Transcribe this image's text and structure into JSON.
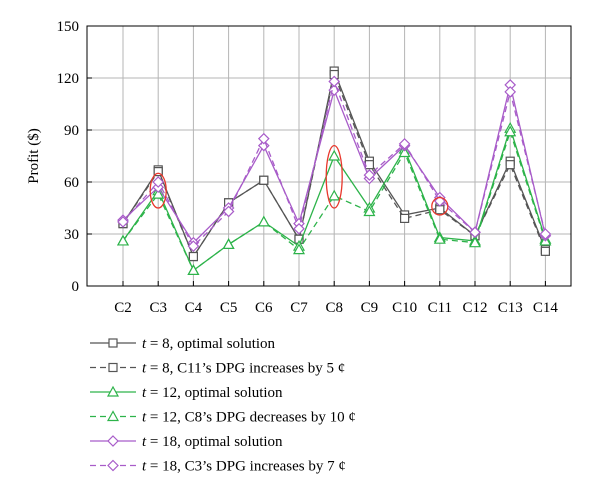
{
  "chart_data": {
    "type": "line",
    "title": "",
    "xlabel": "",
    "ylabel": "Profit ($)",
    "ylim": [
      0,
      150
    ],
    "yticks": [
      0,
      30,
      60,
      90,
      120,
      150
    ],
    "grid": true,
    "legend_placement": "bottom",
    "categories": [
      "C2",
      "C3",
      "C4",
      "C5",
      "C6",
      "C7",
      "C8",
      "C9",
      "C10",
      "C11",
      "C12",
      "C13",
      "C14"
    ],
    "series": [
      {
        "name": "t = 8, optimal solution",
        "t": "t",
        "rest": " = 8, optimal solution",
        "marker": "square",
        "dash": false,
        "color": "#555555",
        "values": [
          36,
          67,
          17,
          48,
          61,
          27,
          124,
          72,
          41,
          45,
          29,
          72,
          21
        ]
      },
      {
        "name": "t = 8, C11's DPG increases by 5 ¢",
        "t": "t",
        "rest": " = 8, C11’s DPG increases by 5 ¢",
        "marker": "square",
        "dash": true,
        "color": "#555555",
        "values": [
          36,
          66,
          17,
          48,
          61,
          27,
          122,
          70,
          39,
          44,
          29,
          70,
          20
        ]
      },
      {
        "name": "t = 12, optimal solution",
        "t": "t",
        "rest": " = 12, optimal solution",
        "marker": "triangle",
        "dash": false,
        "color": "#2db34a",
        "values": [
          26,
          55,
          9,
          24,
          37,
          23,
          75,
          45,
          79,
          28,
          26,
          91,
          27
        ]
      },
      {
        "name": "t = 12, C8's DPG decreases by 10 ¢",
        "t": "t",
        "rest": " = 12, C8’s DPG decreases by 10 ¢",
        "marker": "triangle",
        "dash": true,
        "color": "#2db34a",
        "values": [
          26,
          53,
          9,
          24,
          37,
          21,
          52,
          43,
          77,
          27,
          25,
          89,
          26
        ]
      },
      {
        "name": "t = 18, optimal solution",
        "t": "t",
        "rest": " = 18, optimal solution",
        "marker": "diamond",
        "dash": false,
        "color": "#a85cc9",
        "values": [
          38,
          57,
          25,
          45,
          81,
          36,
          113,
          62,
          81,
          51,
          31,
          116,
          29
        ]
      },
      {
        "name": "t = 18, C3's DPG increases by 7 ¢",
        "t": "t",
        "rest": " = 18, C3’s DPG increases by 7 ¢",
        "marker": "diamond",
        "dash": true,
        "color": "#a85cc9",
        "values": [
          37,
          60,
          23,
          43,
          85,
          33,
          118,
          64,
          82,
          49,
          31,
          112,
          30
        ]
      }
    ],
    "annotations": [
      {
        "shape": "ellipse",
        "category": "C3",
        "y_center": 55,
        "y_half_span": 10,
        "color": "#e8372c"
      },
      {
        "shape": "ellipse",
        "category": "C8",
        "y_center": 63,
        "y_half_span": 18,
        "color": "#e8372c"
      },
      {
        "shape": "ellipse",
        "category": "C11",
        "y_center": 46,
        "y_half_span": 5,
        "color": "#e8372c"
      }
    ]
  }
}
